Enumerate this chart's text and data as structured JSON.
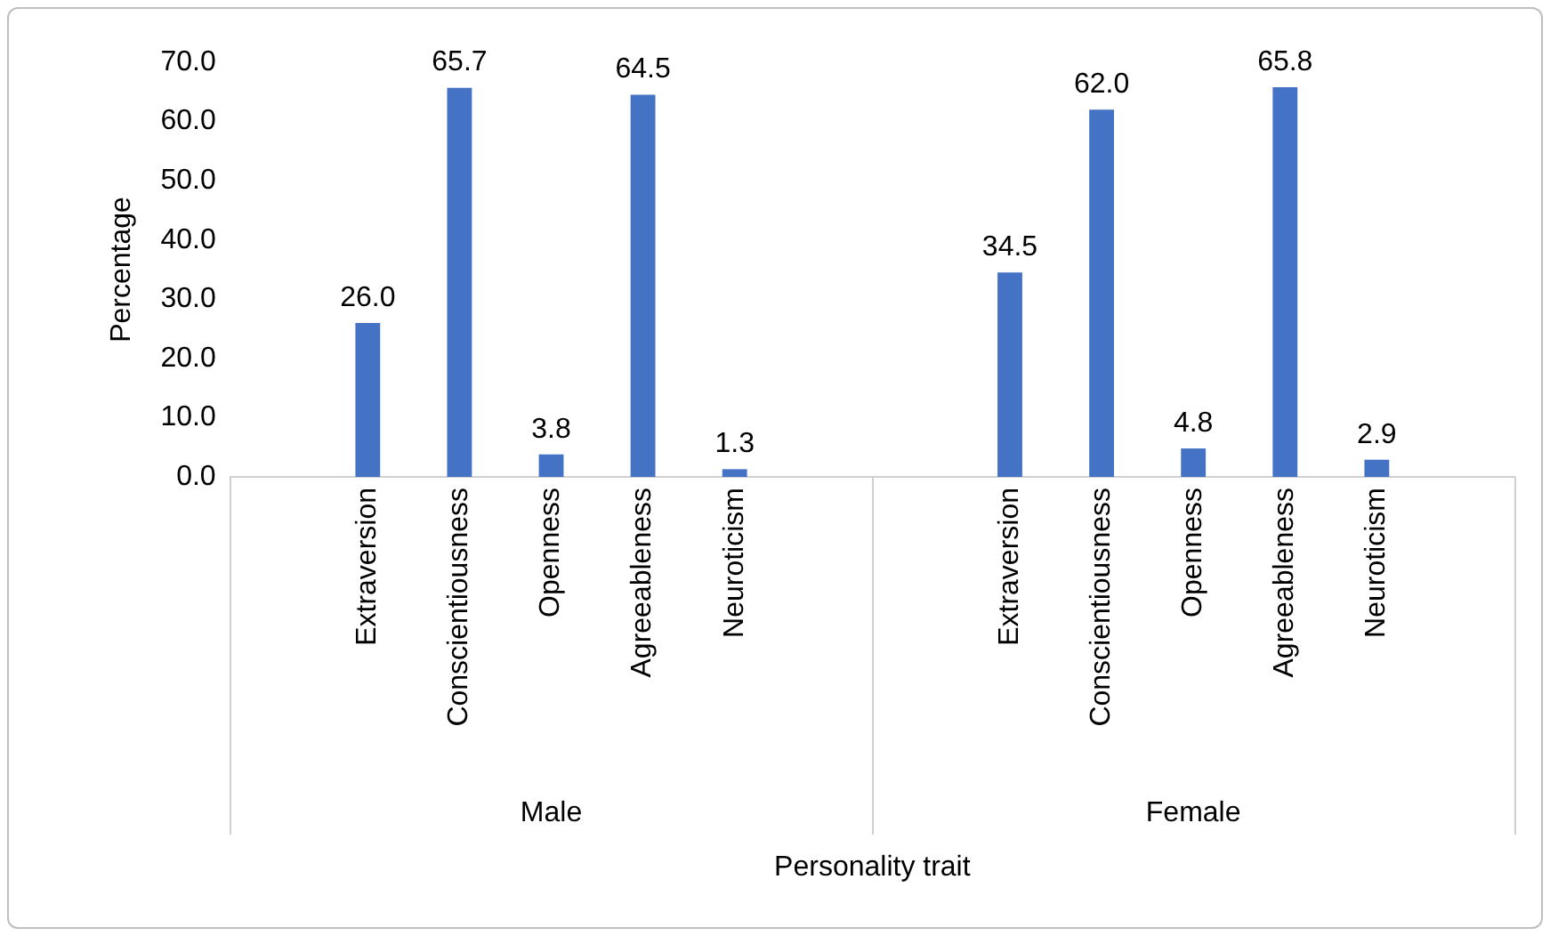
{
  "chart_data": {
    "type": "bar",
    "xlabel": "Personality trait",
    "ylabel": "Percentage",
    "categories": [
      null,
      "Extraversion",
      "Conscientiousness",
      "Openness",
      "Agreeableness",
      "Neuroticism",
      null,
      null,
      "Extraversion",
      "Conscientiousness",
      "Openness",
      "Agreeableness",
      "Neuroticism",
      null
    ],
    "values": [
      null,
      26.0,
      65.7,
      3.8,
      64.5,
      1.3,
      null,
      null,
      34.5,
      62.0,
      4.8,
      65.8,
      2.9,
      null
    ],
    "value_labels": [
      null,
      "26.0",
      "65.7",
      "3.8",
      "64.5",
      "1.3",
      null,
      null,
      "34.5",
      "62.0",
      "4.8",
      "65.8",
      "2.9",
      null
    ],
    "color": "#4472c4",
    "ylim": [
      0,
      70
    ],
    "yticks": [
      {
        "value": 0,
        "label": "0.0"
      },
      {
        "value": 10,
        "label": "10.0"
      },
      {
        "value": 20,
        "label": "20.0"
      },
      {
        "value": 30,
        "label": "30.0"
      },
      {
        "value": 40,
        "label": "40.0"
      },
      {
        "value": 50,
        "label": "50.0"
      },
      {
        "value": 60,
        "label": "60.0"
      },
      {
        "value": 70,
        "label": "70.0"
      }
    ],
    "annotations": [
      "Male",
      "Female"
    ],
    "grid": false,
    "legend": false
  }
}
